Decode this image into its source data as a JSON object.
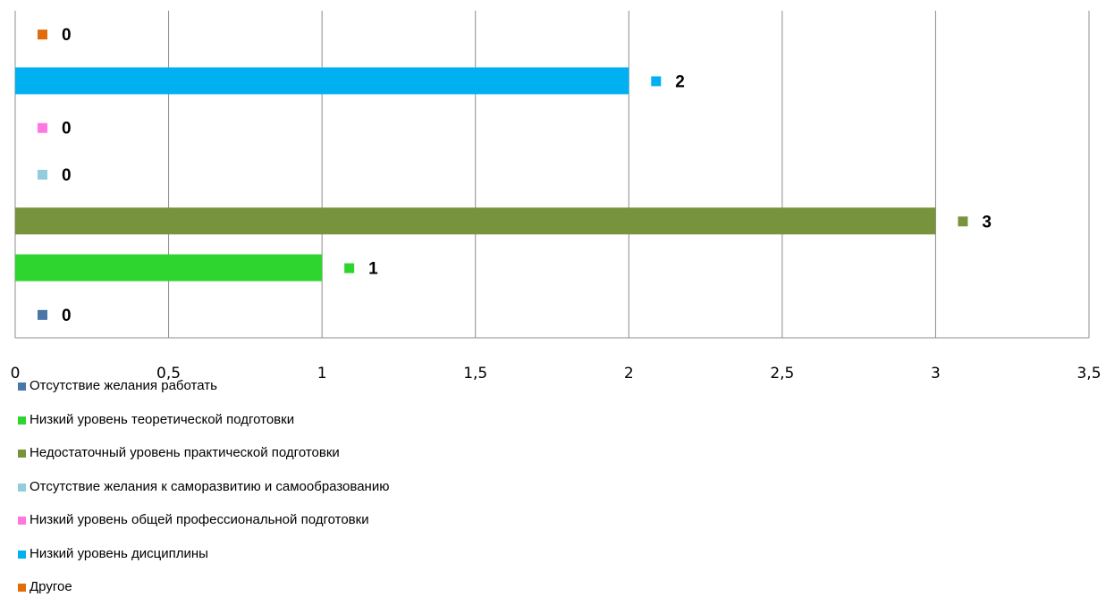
{
  "chart_data": {
    "type": "bar",
    "orientation": "horizontal",
    "title": "",
    "xlabel": "",
    "ylabel": "",
    "xlim": [
      0,
      3.5
    ],
    "x_ticks": [
      "0",
      "0,5",
      "1",
      "1,5",
      "2",
      "2,5",
      "3",
      "3,5"
    ],
    "grid": "vertical",
    "legend_position": "bottom",
    "series": [
      {
        "name": "Отсутствие желания работать",
        "value": 0,
        "label": "0",
        "color": "#4a76a8"
      },
      {
        "name": "Низкий уровень теоретической подготовки",
        "value": 1,
        "label": "1",
        "color": "#2ed52e"
      },
      {
        "name": "Недостаточный уровень практической подготовки",
        "value": 3,
        "label": "3",
        "color": "#77933c"
      },
      {
        "name": "Отсутствие желания к саморазвитию и самообразованию",
        "value": 0,
        "label": "0",
        "color": "#93cddd"
      },
      {
        "name": "Низкий уровень общей профессиональной подготовки",
        "value": 0,
        "label": "0",
        "color": "#ff77e0"
      },
      {
        "name": "Низкий уровень дисциплины",
        "value": 2,
        "label": "2",
        "color": "#00b0f0"
      },
      {
        "name": "Другое",
        "value": 0,
        "label": "0",
        "color": "#e36c0a"
      }
    ]
  }
}
